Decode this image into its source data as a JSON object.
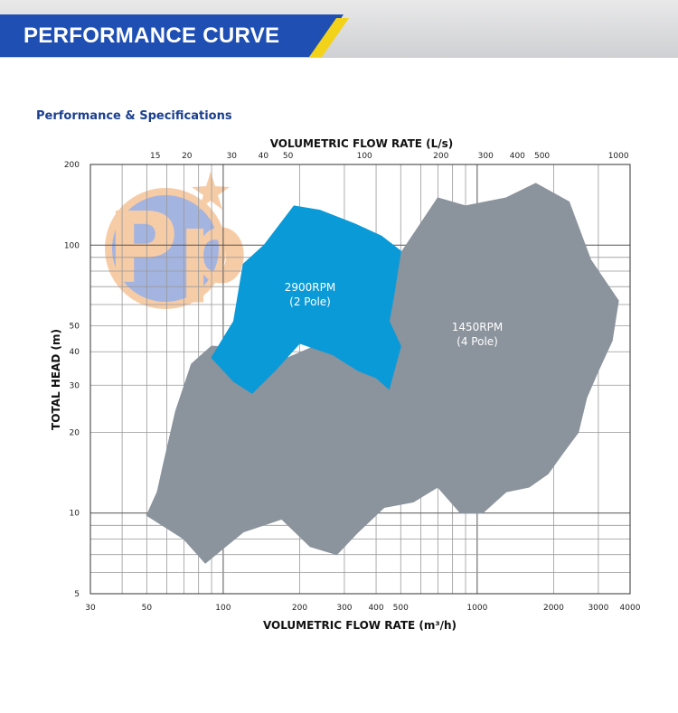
{
  "header": {
    "title": "PERFORMANCE CURVE",
    "accent_color": "#1f4fb3",
    "stripe_color": "#f3d21a"
  },
  "subtitle": "Performance & Specifications",
  "logo": {
    "text": "Pp",
    "icon": "star-circle-logo-icon"
  },
  "chart_data": {
    "type": "area",
    "title": "",
    "xlabel": "VOLUMETRIC FLOW RATE (m³/h)",
    "x2label": "VOLUMETRIC FLOW RATE (L/s)",
    "ylabel": "TOTAL HEAD (m)",
    "xscale": "log",
    "yscale": "log",
    "xlim": [
      30,
      4000
    ],
    "ylim": [
      5,
      200
    ],
    "x_ticks": [
      "30",
      "50",
      "100",
      "200",
      "300",
      "400",
      "500",
      "1000",
      "2000",
      "3000",
      "4000"
    ],
    "x2_ticks": [
      "15",
      "20",
      "30",
      "40",
      "50",
      "100",
      "200",
      "300",
      "400",
      "500",
      "1000"
    ],
    "y_ticks": [
      "5",
      "10",
      "20",
      "30",
      "40",
      "50",
      "100",
      "200"
    ],
    "grid": true,
    "series": [
      {
        "name": "1450RPM",
        "label": "1450RPM",
        "sublabel": "(4 Pole)",
        "color": "#8b939c",
        "points": [
          [
            50,
            9.8
          ],
          [
            55,
            12
          ],
          [
            58,
            15
          ],
          [
            65,
            24
          ],
          [
            75,
            36
          ],
          [
            90,
            42
          ],
          [
            130,
            41
          ],
          [
            180,
            38
          ],
          [
            230,
            42
          ],
          [
            280,
            48
          ],
          [
            330,
            56
          ],
          [
            400,
            66
          ],
          [
            480,
            88
          ],
          [
            580,
            115
          ],
          [
            700,
            150
          ],
          [
            900,
            140
          ],
          [
            1300,
            150
          ],
          [
            1700,
            170
          ],
          [
            2300,
            145
          ],
          [
            2800,
            88
          ],
          [
            3600,
            62
          ],
          [
            3400,
            44
          ],
          [
            3000,
            34
          ],
          [
            2700,
            27
          ],
          [
            2500,
            20
          ],
          [
            2200,
            17
          ],
          [
            1900,
            14
          ],
          [
            1600,
            12.5
          ],
          [
            1300,
            12
          ],
          [
            1050,
            10
          ],
          [
            860,
            10
          ],
          [
            700,
            12.5
          ],
          [
            560,
            11
          ],
          [
            430,
            10.5
          ],
          [
            340,
            8.5
          ],
          [
            280,
            7
          ],
          [
            220,
            7.5
          ],
          [
            170,
            9.5
          ],
          [
            120,
            8.5
          ],
          [
            85,
            6.5
          ],
          [
            70,
            8
          ]
        ]
      },
      {
        "name": "2900RPM",
        "label": "2900RPM",
        "sublabel": "(2 Pole)",
        "color": "#0b9ad8",
        "points": [
          [
            90,
            38
          ],
          [
            110,
            52
          ],
          [
            120,
            85
          ],
          [
            145,
            100
          ],
          [
            190,
            140
          ],
          [
            240,
            135
          ],
          [
            330,
            120
          ],
          [
            420,
            108
          ],
          [
            500,
            95
          ],
          [
            470,
            65
          ],
          [
            450,
            52
          ],
          [
            500,
            42
          ],
          [
            450,
            29
          ],
          [
            400,
            32
          ],
          [
            340,
            34
          ],
          [
            270,
            39
          ],
          [
            200,
            43
          ],
          [
            160,
            34
          ],
          [
            130,
            28
          ],
          [
            110,
            31
          ]
        ]
      }
    ]
  }
}
